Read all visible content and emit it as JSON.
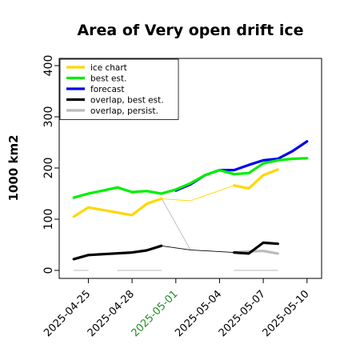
{
  "chart_data": {
    "type": "line",
    "title": "Area of Very open drift ice",
    "ylabel": "1000 km2",
    "xlabel": "",
    "ylim": [
      0,
      420
    ],
    "yticks": [
      0,
      100,
      200,
      300,
      400
    ],
    "xlim": [
      "2025-04-23",
      "2025-05-11"
    ],
    "xticks": [
      {
        "label": "2025-04-25",
        "date": "2025-04-25",
        "color": "#000000"
      },
      {
        "label": "2025-04-28",
        "date": "2025-04-28",
        "color": "#000000"
      },
      {
        "label": "2025-05-01",
        "date": "2025-05-01",
        "color": "#228B22"
      },
      {
        "label": "2025-05-04",
        "date": "2025-05-04",
        "color": "#000000"
      },
      {
        "label": "2025-05-07",
        "date": "2025-05-07",
        "color": "#000000"
      },
      {
        "label": "2025-05-10",
        "date": "2025-05-10",
        "color": "#000000"
      }
    ],
    "legend_position": "top-left",
    "series": [
      {
        "name": "ice chart",
        "color": "#FFD700",
        "segments": [
          {
            "x": [
              "2025-04-24",
              "2025-04-25",
              "2025-04-28",
              "2025-04-29",
              "2025-04-30"
            ],
            "y": [
              105,
              123,
              108,
              130,
              140
            ],
            "style": "thick"
          },
          {
            "x": [
              "2025-04-30",
              "2025-05-02",
              "2025-05-05"
            ],
            "y": [
              140,
              136,
              166
            ],
            "style": "thin"
          },
          {
            "x": [
              "2025-05-05",
              "2025-05-06",
              "2025-05-07",
              "2025-05-08"
            ],
            "y": [
              166,
              160,
              186,
              197
            ],
            "style": "thick"
          }
        ]
      },
      {
        "name": "best est.",
        "color": "#00EE00",
        "segments": [
          {
            "x": [
              "2025-04-24",
              "2025-04-25",
              "2025-04-26",
              "2025-04-27",
              "2025-04-28",
              "2025-04-29",
              "2025-04-30",
              "2025-05-01",
              "2025-05-02",
              "2025-05-03",
              "2025-05-04",
              "2025-05-05",
              "2025-05-06",
              "2025-05-07",
              "2025-05-08",
              "2025-05-09",
              "2025-05-10"
            ],
            "y": [
              142,
              150,
              156,
              162,
              153,
              155,
              150,
              158,
              170,
              186,
              196,
              188,
              190,
              209,
              215,
              218,
              219
            ],
            "style": "thick"
          }
        ]
      },
      {
        "name": "forecast",
        "color": "#0000EE",
        "segments": [
          {
            "x": [
              "2025-05-01",
              "2025-05-02",
              "2025-05-03",
              "2025-05-04",
              "2025-05-05",
              "2025-05-06",
              "2025-05-07",
              "2025-05-08",
              "2025-05-09",
              "2025-05-10"
            ],
            "y": [
              156,
              168,
              186,
              196,
              196,
              206,
              215,
              218,
              233,
              252
            ],
            "style": "thick"
          }
        ]
      },
      {
        "name": "overlap, best est.",
        "color": "#000000",
        "segments": [
          {
            "x": [
              "2025-04-24",
              "2025-04-25",
              "2025-04-28",
              "2025-04-29",
              "2025-04-30"
            ],
            "y": [
              22,
              30,
              35,
              39,
              48
            ],
            "style": "thick"
          },
          {
            "x": [
              "2025-04-30",
              "2025-05-02",
              "2025-05-05"
            ],
            "y": [
              48,
              40,
              35
            ],
            "style": "thin"
          },
          {
            "x": [
              "2025-05-05",
              "2025-05-06",
              "2025-05-07",
              "2025-05-08"
            ],
            "y": [
              35,
              33,
              54,
              52
            ],
            "style": "thick"
          }
        ]
      },
      {
        "name": "overlap, persist.",
        "color": "#BBBBBB",
        "segments": [
          {
            "x": [
              "2025-04-30",
              "2025-05-02"
            ],
            "y": [
              142,
              40
            ],
            "style": "thin"
          },
          {
            "x": [
              "2025-05-05",
              "2025-05-06",
              "2025-05-07",
              "2025-05-08"
            ],
            "y": [
              35,
              37,
              38,
              33
            ],
            "style": "thick"
          },
          {
            "x": [
              "2025-04-24",
              "2025-04-25"
            ],
            "y": [
              0,
              0
            ],
            "style": "thin"
          },
          {
            "x": [
              "2025-04-27",
              "2025-04-30"
            ],
            "y": [
              0,
              0
            ],
            "style": "thin"
          },
          {
            "x": [
              "2025-05-05",
              "2025-05-08"
            ],
            "y": [
              0,
              0
            ],
            "style": "thin"
          }
        ]
      }
    ]
  }
}
